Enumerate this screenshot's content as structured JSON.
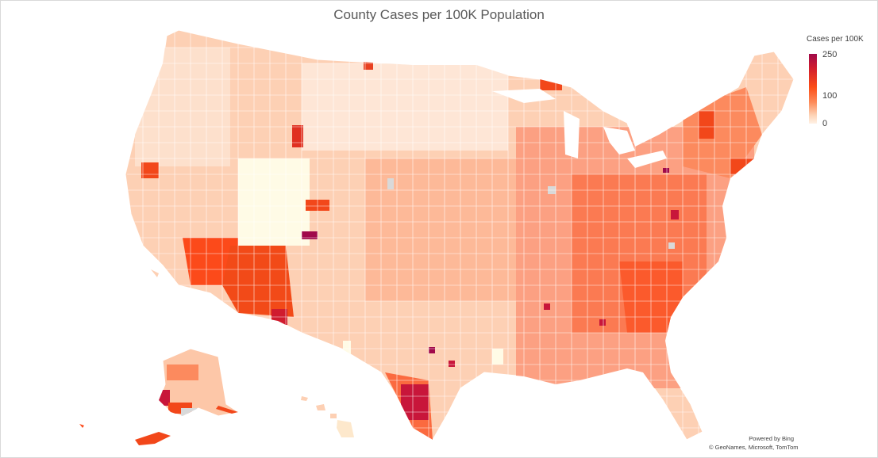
{
  "title": "County Cases per 100K Population",
  "legend": {
    "title": "Cases per 100K",
    "ticks": [
      "250",
      "100",
      "0"
    ]
  },
  "credits": {
    "line1": "Powered by Bing",
    "line2": "© GeoNames, Microsoft, TomTom"
  },
  "colors": {
    "low": "#fff2e6",
    "mid": "#fc4e17",
    "high": "#a0094a",
    "nodata": "#d9d9d9"
  },
  "chart_data": {
    "type": "heatmap",
    "title": "County Cases per 100K Population",
    "legend_title": "Cases per 100K",
    "scale": {
      "min": 0,
      "mid": 100,
      "max": 250
    },
    "legend_placement": "top-right"
  }
}
